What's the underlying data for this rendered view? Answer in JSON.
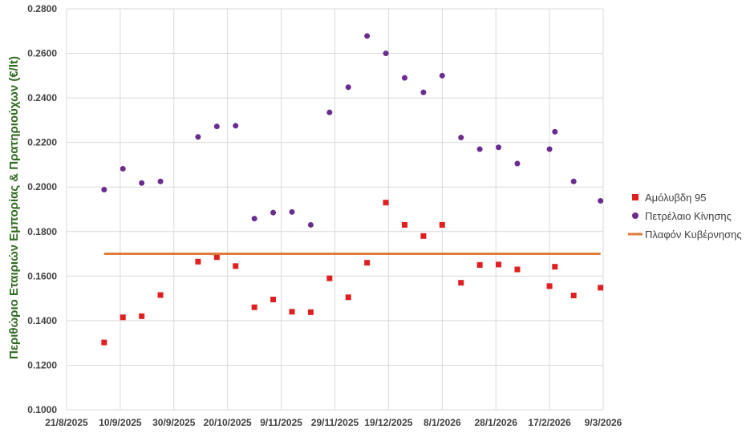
{
  "chart_data": {
    "type": "scatter",
    "ylabel": "Περιθώριο Εταιριών Εμπορίας & Πρατηριούχων (€/lt)",
    "xlabel": "",
    "ylim": [
      0.1,
      0.28
    ],
    "xlim": [
      "2025-08-21",
      "2026-03-09"
    ],
    "yticks": [
      "0.1000",
      "0.1200",
      "0.1400",
      "0.1600",
      "0.1800",
      "0.2000",
      "0.2200",
      "0.2400",
      "0.2600",
      "0.2800"
    ],
    "xticks": [
      "21/8/2025",
      "10/9/2025",
      "30/9/2025",
      "20/10/2025",
      "9/11/2025",
      "29/11/2025",
      "19/12/2025",
      "8/1/2026",
      "28/1/2026",
      "17/2/2026",
      "9/3/2026"
    ],
    "grid": "vertical and horizontal",
    "legend_position": "right",
    "series": [
      {
        "name": "Αμόλυβδη 95",
        "marker": "square",
        "color": "#e02020",
        "points": [
          {
            "x": "2025-09-04",
            "y": 0.1302
          },
          {
            "x": "2025-09-11",
            "y": 0.1415
          },
          {
            "x": "2025-09-18",
            "y": 0.142
          },
          {
            "x": "2025-09-25",
            "y": 0.1515
          },
          {
            "x": "2025-10-09",
            "y": 0.1665
          },
          {
            "x": "2025-10-16",
            "y": 0.1685
          },
          {
            "x": "2025-10-23",
            "y": 0.1645
          },
          {
            "x": "2025-10-30",
            "y": 0.146
          },
          {
            "x": "2025-11-06",
            "y": 0.1495
          },
          {
            "x": "2025-11-13",
            "y": 0.144
          },
          {
            "x": "2025-11-20",
            "y": 0.1438
          },
          {
            "x": "2025-11-27",
            "y": 0.159
          },
          {
            "x": "2025-12-04",
            "y": 0.1505
          },
          {
            "x": "2025-12-11",
            "y": 0.166
          },
          {
            "x": "2025-12-18",
            "y": 0.193
          },
          {
            "x": "2025-12-25",
            "y": 0.183
          },
          {
            "x": "2026-01-01",
            "y": 0.178
          },
          {
            "x": "2026-01-08",
            "y": 0.183
          },
          {
            "x": "2026-01-15",
            "y": 0.157
          },
          {
            "x": "2026-01-22",
            "y": 0.165
          },
          {
            "x": "2026-01-29",
            "y": 0.1652
          },
          {
            "x": "2026-02-05",
            "y": 0.163
          },
          {
            "x": "2026-02-17",
            "y": 0.1555
          },
          {
            "x": "2026-02-19",
            "y": 0.1642
          },
          {
            "x": "2026-02-26",
            "y": 0.1513
          },
          {
            "x": "2026-03-08",
            "y": 0.1548
          }
        ]
      },
      {
        "name": "Πετρέλαιο Κίνησης",
        "marker": "circle",
        "color": "#6a2c8f",
        "points": [
          {
            "x": "2025-09-04",
            "y": 0.1988
          },
          {
            "x": "2025-09-11",
            "y": 0.2082
          },
          {
            "x": "2025-09-18",
            "y": 0.2018
          },
          {
            "x": "2025-09-25",
            "y": 0.2025
          },
          {
            "x": "2025-10-09",
            "y": 0.2225
          },
          {
            "x": "2025-10-16",
            "y": 0.2272
          },
          {
            "x": "2025-10-23",
            "y": 0.2275
          },
          {
            "x": "2025-10-30",
            "y": 0.1858
          },
          {
            "x": "2025-11-06",
            "y": 0.1885
          },
          {
            "x": "2025-11-13",
            "y": 0.1888
          },
          {
            "x": "2025-11-20",
            "y": 0.183
          },
          {
            "x": "2025-11-27",
            "y": 0.2335
          },
          {
            "x": "2025-12-04",
            "y": 0.2448
          },
          {
            "x": "2025-12-11",
            "y": 0.2678
          },
          {
            "x": "2025-12-18",
            "y": 0.26
          },
          {
            "x": "2025-12-25",
            "y": 0.249
          },
          {
            "x": "2026-01-01",
            "y": 0.2425
          },
          {
            "x": "2026-01-08",
            "y": 0.25
          },
          {
            "x": "2026-01-15",
            "y": 0.2222
          },
          {
            "x": "2026-01-22",
            "y": 0.217
          },
          {
            "x": "2026-01-29",
            "y": 0.2178
          },
          {
            "x": "2026-02-05",
            "y": 0.2105
          },
          {
            "x": "2026-02-17",
            "y": 0.217
          },
          {
            "x": "2026-02-19",
            "y": 0.2248
          },
          {
            "x": "2026-02-26",
            "y": 0.2025
          },
          {
            "x": "2026-03-08",
            "y": 0.1938
          }
        ]
      },
      {
        "name": "Πλαφόν Κυβέρνησης",
        "marker": "line",
        "color": "#e07b39",
        "points": [
          {
            "x": "2025-09-04",
            "y": 0.17
          },
          {
            "x": "2026-03-08",
            "y": 0.17
          }
        ]
      }
    ]
  }
}
